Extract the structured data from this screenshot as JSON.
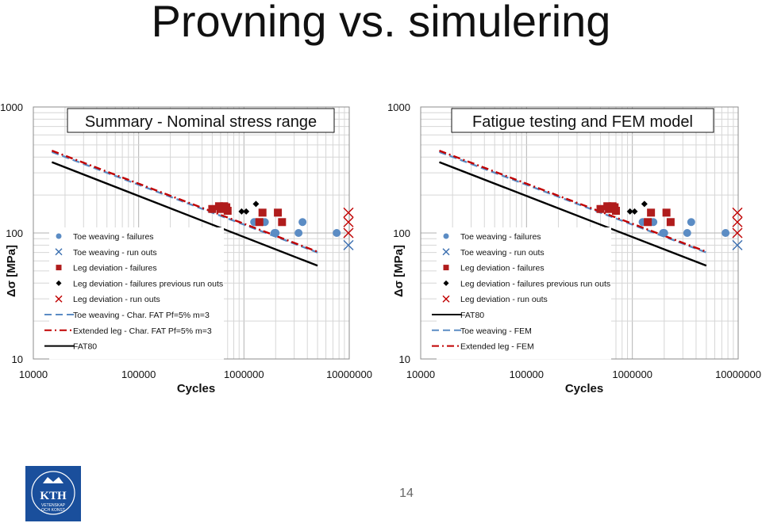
{
  "slide": {
    "title": "Provning vs. simulering",
    "page_number": "14",
    "logo_text": [
      "KTH",
      "VETENSKAP",
      "OCH KONST"
    ]
  },
  "chart_data": [
    {
      "type": "scatter",
      "title": "Summary - Nominal stress range",
      "xlabel": "Cycles",
      "ylabel": "Δσ [MPa]",
      "x_scale": "log",
      "y_scale": "log",
      "xlim": [
        10000,
        10000000
      ],
      "ylim": [
        10,
        1000
      ],
      "x_ticks": [
        "10000",
        "100000",
        "1000000",
        "10000000"
      ],
      "y_ticks": [
        "10",
        "100",
        "1000"
      ],
      "grid": true,
      "legend_position": "bottom-left",
      "series": [
        {
          "name": "Toe weaving - failures",
          "kind": "scatter",
          "marker": "circle",
          "color": "#5b8cc4",
          "points": [
            [
              1250000,
              122
            ],
            [
              1500000,
              122
            ],
            [
              1580000,
              122
            ],
            [
              1950000,
              100
            ],
            [
              2000000,
              100
            ],
            [
              3300000,
              100
            ],
            [
              3600000,
              122
            ],
            [
              7600000,
              100
            ]
          ]
        },
        {
          "name": "Toe weaving - run outs",
          "kind": "scatter",
          "marker": "x",
          "color": "#3b6fb0",
          "points": [
            [
              10000000,
              80
            ]
          ]
        },
        {
          "name": "Leg deviation - failures",
          "kind": "scatter",
          "marker": "square",
          "color": "#b01c1c",
          "points": [
            [
              500000,
              155
            ],
            [
              580000,
              163
            ],
            [
              600000,
              155
            ],
            [
              650000,
              163
            ],
            [
              680000,
              160
            ],
            [
              700000,
              150
            ],
            [
              1400000,
              122
            ],
            [
              1500000,
              145
            ],
            [
              2100000,
              145
            ],
            [
              2300000,
              122
            ]
          ]
        },
        {
          "name": "Leg deviation - failures previous run outs",
          "kind": "scatter",
          "marker": "diamond",
          "color": "#000000",
          "points": [
            [
              950000,
              148
            ],
            [
              1050000,
              148
            ],
            [
              1300000,
              170
            ]
          ]
        },
        {
          "name": "Leg deviation - run outs",
          "kind": "scatter",
          "marker": "x",
          "color": "#c00000",
          "points": [
            [
              10000000,
              100
            ],
            [
              10000000,
              122
            ],
            [
              10000000,
              145
            ]
          ]
        },
        {
          "name": "Toe weaving - Char. FAT Pf=5% m=3",
          "kind": "line",
          "style": "dashed",
          "color": "#5b8cc4",
          "points": [
            [
              15000,
              440
            ],
            [
              5000000,
              70
            ]
          ]
        },
        {
          "name": "Extended leg - Char. FAT Pf=5% m=3",
          "kind": "line",
          "style": "dash-dot",
          "color": "#c00000",
          "points": [
            [
              15000,
              450
            ],
            [
              5000000,
              71
            ]
          ]
        },
        {
          "name": "FAT80",
          "kind": "line",
          "style": "solid",
          "color": "#000000",
          "points": [
            [
              15000,
              365
            ],
            [
              5000000,
              55
            ]
          ]
        }
      ]
    },
    {
      "type": "scatter",
      "title": "Fatigue testing and FEM model",
      "xlabel": "Cycles",
      "ylabel": "Δσ [MPa]",
      "x_scale": "log",
      "y_scale": "log",
      "xlim": [
        10000,
        10000000
      ],
      "ylim": [
        10,
        1000
      ],
      "x_ticks": [
        "10000",
        "100000",
        "1000000",
        "10000000"
      ],
      "y_ticks": [
        "10",
        "100",
        "1000"
      ],
      "grid": true,
      "legend_position": "bottom-left",
      "series": [
        {
          "name": "Toe weaving - failures",
          "kind": "scatter",
          "marker": "circle",
          "color": "#5b8cc4",
          "points": [
            [
              1250000,
              122
            ],
            [
              1500000,
              122
            ],
            [
              1580000,
              122
            ],
            [
              1950000,
              100
            ],
            [
              2000000,
              100
            ],
            [
              3300000,
              100
            ],
            [
              3600000,
              122
            ],
            [
              7600000,
              100
            ]
          ]
        },
        {
          "name": "Toe weaving - run outs",
          "kind": "scatter",
          "marker": "x",
          "color": "#3b6fb0",
          "points": [
            [
              10000000,
              80
            ]
          ]
        },
        {
          "name": "Leg deviation - failures",
          "kind": "scatter",
          "marker": "square",
          "color": "#b01c1c",
          "points": [
            [
              500000,
              155
            ],
            [
              580000,
              163
            ],
            [
              600000,
              155
            ],
            [
              650000,
              163
            ],
            [
              680000,
              160
            ],
            [
              700000,
              150
            ],
            [
              1400000,
              122
            ],
            [
              1500000,
              145
            ],
            [
              2100000,
              145
            ],
            [
              2300000,
              122
            ]
          ]
        },
        {
          "name": "Leg deviation - failures previous run outs",
          "kind": "scatter",
          "marker": "diamond",
          "color": "#000000",
          "points": [
            [
              950000,
              148
            ],
            [
              1050000,
              148
            ],
            [
              1300000,
              170
            ]
          ]
        },
        {
          "name": "Leg deviation - run outs",
          "kind": "scatter",
          "marker": "x",
          "color": "#c00000",
          "points": [
            [
              10000000,
              100
            ],
            [
              10000000,
              122
            ],
            [
              10000000,
              145
            ]
          ]
        },
        {
          "name": "FAT80",
          "kind": "line",
          "style": "solid",
          "color": "#000000",
          "points": [
            [
              15000,
              365
            ],
            [
              5000000,
              55
            ]
          ]
        },
        {
          "name": "Toe weaving - FEM",
          "kind": "line",
          "style": "dashed",
          "color": "#5b8cc4",
          "points": [
            [
              15000,
              440
            ],
            [
              5000000,
              70
            ]
          ]
        },
        {
          "name": "Extended leg - FEM",
          "kind": "line",
          "style": "dash-dot",
          "color": "#c00000",
          "points": [
            [
              15000,
              450
            ],
            [
              5000000,
              71
            ]
          ]
        }
      ]
    }
  ]
}
